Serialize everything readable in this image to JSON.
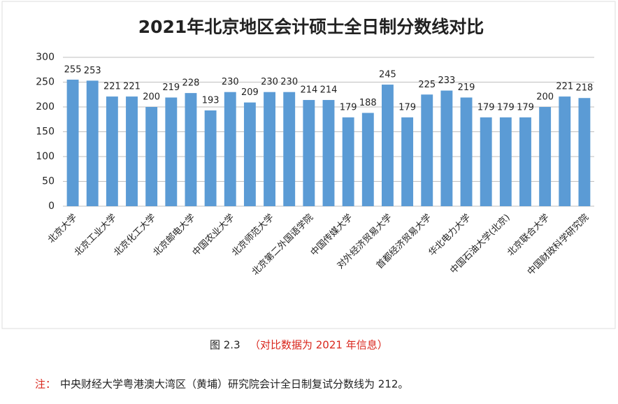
{
  "chart_data": {
    "type": "bar",
    "title": "2021年北京地区会计硕士全日制分数线对比",
    "categories": [
      "北京大学",
      null,
      "北京工业大学",
      null,
      "北京化工大学",
      null,
      "北京邮电大学",
      null,
      "中国农业大学",
      null,
      "北京师范大学",
      null,
      "北京第二外国语学院",
      null,
      "中国传媒大学",
      null,
      "对外经济贸易大学",
      null,
      "首都经济贸易大学",
      null,
      "华北电力大学",
      null,
      "中国石油大学(北京)",
      null,
      "北京联合大学",
      null,
      "中国财政科学研究院"
    ],
    "values": [
      255,
      253,
      221,
      221,
      200,
      219,
      228,
      193,
      230,
      209,
      230,
      230,
      214,
      214,
      179,
      188,
      245,
      179,
      225,
      233,
      219,
      179,
      179,
      179,
      200,
      221,
      218
    ],
    "color": "#5b9bd5",
    "ylim": [
      0,
      300
    ],
    "yticks": [
      0,
      50,
      100,
      150,
      200,
      250,
      300
    ],
    "grid": true
  },
  "caption": {
    "label": "图 2.3",
    "text": "（对比数据为 2021 年信息）"
  },
  "note": {
    "label": "注：",
    "text": "中央财经大学粤港澳大湾区（黄埔）研究院会计全日制复试分数线为 212。"
  }
}
